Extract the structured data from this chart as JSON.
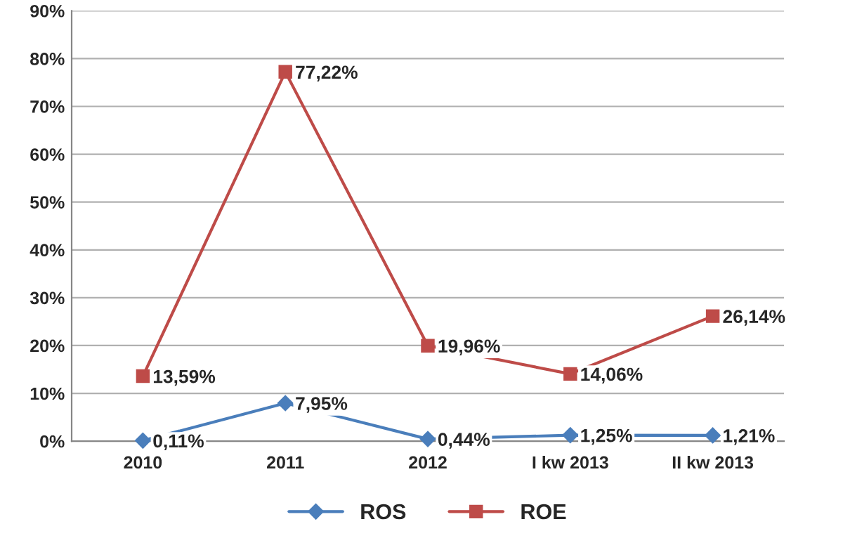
{
  "chart_data": {
    "type": "line",
    "categories": [
      "2010",
      "2011",
      "2012",
      "I kw 2013",
      "II kw 2013"
    ],
    "series": [
      {
        "name": "ROS",
        "color": "#4a7ebb",
        "marker": "diamond",
        "values": [
          0.11,
          7.95,
          0.44,
          1.25,
          1.21
        ],
        "value_labels": [
          "0,11%",
          "7,95%",
          "0,44%",
          "1,25%",
          "1,21%"
        ]
      },
      {
        "name": "ROE",
        "color": "#be4b48",
        "marker": "square",
        "values": [
          13.59,
          77.22,
          19.96,
          14.06,
          26.14
        ],
        "value_labels": [
          "13,59%",
          "77,22%",
          "19,96%",
          "14,06%",
          "26,14%"
        ]
      }
    ],
    "ylim": [
      0,
      90
    ],
    "yticks": [
      {
        "value": 0,
        "label": "0%"
      },
      {
        "value": 10,
        "label": "10%"
      },
      {
        "value": 20,
        "label": "20%"
      },
      {
        "value": 30,
        "label": "30%"
      },
      {
        "value": 40,
        "label": "40%"
      },
      {
        "value": 50,
        "label": "50%"
      },
      {
        "value": 60,
        "label": "60%"
      },
      {
        "value": 70,
        "label": "70%"
      },
      {
        "value": 80,
        "label": "80%"
      },
      {
        "value": 90,
        "label": "90%"
      }
    ],
    "grid": "y",
    "legend": "bottom",
    "line_style": "solid"
  }
}
